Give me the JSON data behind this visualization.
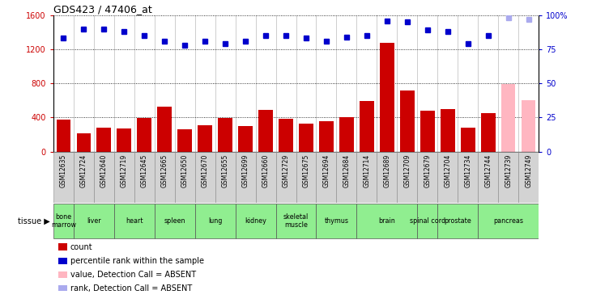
{
  "title": "GDS423 / 47406_at",
  "samples": [
    "GSM12635",
    "GSM12724",
    "GSM12640",
    "GSM12719",
    "GSM12645",
    "GSM12665",
    "GSM12650",
    "GSM12670",
    "GSM12655",
    "GSM12699",
    "GSM12660",
    "GSM12729",
    "GSM12675",
    "GSM12694",
    "GSM12684",
    "GSM12714",
    "GSM12689",
    "GSM12709",
    "GSM12679",
    "GSM12704",
    "GSM12734",
    "GSM12744",
    "GSM12739",
    "GSM12749"
  ],
  "counts": [
    370,
    210,
    280,
    270,
    390,
    530,
    260,
    310,
    390,
    300,
    490,
    380,
    330,
    360,
    400,
    590,
    1280,
    720,
    480,
    500,
    280,
    450,
    790,
    600
  ],
  "absent_flags": [
    false,
    false,
    false,
    false,
    false,
    false,
    false,
    false,
    false,
    false,
    false,
    false,
    false,
    false,
    false,
    false,
    false,
    false,
    false,
    false,
    false,
    false,
    true,
    true
  ],
  "percentile_ranks": [
    83,
    90,
    90,
    88,
    85,
    81,
    78,
    81,
    79,
    81,
    85,
    85,
    83,
    81,
    84,
    85,
    96,
    95,
    89,
    88,
    79,
    85,
    98,
    97
  ],
  "absent_rank_flags": [
    false,
    false,
    false,
    false,
    false,
    false,
    false,
    false,
    false,
    false,
    false,
    false,
    false,
    false,
    false,
    false,
    false,
    false,
    false,
    false,
    false,
    false,
    true,
    true
  ],
  "tissues": [
    {
      "name": "bone\nmarrow",
      "start": 0,
      "end": 1
    },
    {
      "name": "liver",
      "start": 1,
      "end": 3
    },
    {
      "name": "heart",
      "start": 3,
      "end": 5
    },
    {
      "name": "spleen",
      "start": 5,
      "end": 7
    },
    {
      "name": "lung",
      "start": 7,
      "end": 9
    },
    {
      "name": "kidney",
      "start": 9,
      "end": 11
    },
    {
      "name": "skeletal\nmuscle",
      "start": 11,
      "end": 13
    },
    {
      "name": "thymus",
      "start": 13,
      "end": 15
    },
    {
      "name": "brain",
      "start": 15,
      "end": 18
    },
    {
      "name": "spinal cord",
      "start": 18,
      "end": 19
    },
    {
      "name": "prostate",
      "start": 19,
      "end": 21
    },
    {
      "name": "pancreas",
      "start": 21,
      "end": 24
    }
  ],
  "tissue_color": "#90EE90",
  "bar_color_normal": "#CC0000",
  "bar_color_absent": "#FFB6C1",
  "dot_color_normal": "#0000CC",
  "dot_color_absent": "#AAAAEE",
  "ylim_left": [
    0,
    1600
  ],
  "ylim_right": [
    0,
    100
  ],
  "yticks_left": [
    0,
    400,
    800,
    1200,
    1600
  ],
  "yticks_right": [
    0,
    25,
    50,
    75,
    100
  ],
  "ylabel_left_color": "#CC0000",
  "ylabel_right_color": "#0000CC",
  "xtick_bg": "#D3D3D3"
}
